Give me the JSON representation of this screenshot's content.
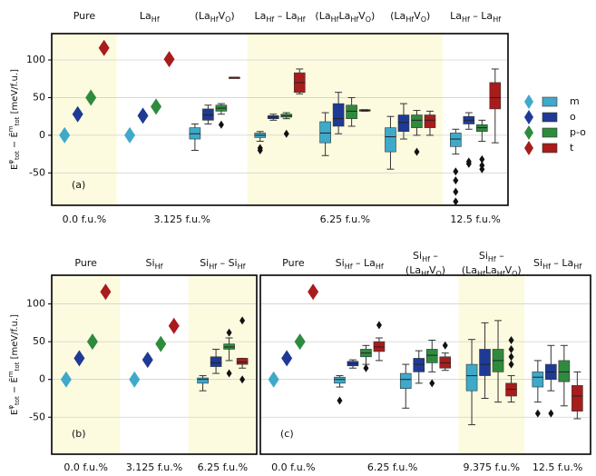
{
  "chart_data": [
    {
      "type": "box",
      "panel_label": "(a)",
      "ylabel": [
        {
          "text": "E",
          "pos": "normal"
        },
        {
          "text": "φ",
          "pos": "sup"
        },
        {
          "text": "tot",
          "pos": "sub"
        },
        {
          "text": " − Ē",
          "pos": "normal"
        },
        {
          "text": "m",
          "pos": "sup"
        },
        {
          "text": "tot",
          "pos": "sub"
        },
        {
          "text": " [meV/f.u.]",
          "pos": "normal"
        }
      ],
      "ylim": [
        -93,
        135
      ],
      "yticks": [
        -50,
        0,
        50,
        100
      ],
      "grid": true,
      "ytick_labels": true,
      "colors": [
        "#3fa9c9",
        "#1f3a96",
        "#2e8b3e",
        "#a81c1c"
      ],
      "legend": [
        "m",
        "o",
        "p-o",
        "t"
      ],
      "concentrations": [
        {
          "label": "0.0 f.u.%",
          "groups": 1,
          "shaded": true
        },
        {
          "label": "3.125 f.u.%",
          "groups": 2,
          "shaded": false
        },
        {
          "label": "6.25 f.u.%",
          "groups": 3,
          "shaded": true
        },
        {
          "label": "12.5 f.u.%",
          "groups": 1,
          "shaded": false
        }
      ],
      "groups": [
        {
          "header": [
            [
              "Pure"
            ]
          ],
          "points": [
            0,
            28,
            50,
            116
          ]
        },
        {
          "header": [
            [
              "La",
              "Hf"
            ]
          ],
          "points": [
            0,
            26,
            38,
            101
          ]
        },
        {
          "header": [
            [
              "(La",
              "Hf",
              "V",
              "O",
              ")"
            ]
          ],
          "boxes": [
            {
              "min": -20,
              "q1": -5,
              "median": 2,
              "q3": 10,
              "max": 15,
              "outliers": []
            },
            {
              "min": 15,
              "q1": 20,
              "median": 27,
              "q3": 35,
              "max": 40,
              "outliers": []
            },
            {
              "min": 28,
              "q1": 32,
              "median": 36,
              "q3": 40,
              "max": 42,
              "outliers": [
                14
              ]
            },
            {
              "min": 77,
              "q1": 77,
              "median": 77,
              "q3": 77,
              "max": 77,
              "outliers": []
            }
          ]
        },
        {
          "header": [
            [
              "La",
              "Hf",
              " – La",
              "Hf"
            ]
          ],
          "boxes": [
            {
              "min": -8,
              "q1": -3,
              "median": 0,
              "q3": 3,
              "max": 5,
              "outliers": [
                -17,
                -20
              ]
            },
            {
              "min": 20,
              "q1": 22,
              "median": 24,
              "q3": 26,
              "max": 28,
              "outliers": []
            },
            {
              "min": 22,
              "q1": 24,
              "median": 26,
              "q3": 28,
              "max": 30,
              "outliers": [
                2
              ]
            },
            {
              "min": 55,
              "q1": 57,
              "median": 70,
              "q3": 83,
              "max": 88,
              "outliers": []
            }
          ]
        },
        {
          "header": [
            [
              "(La",
              "Hf",
              "La",
              "Hf",
              "V",
              "O",
              ")"
            ]
          ],
          "boxes": [
            {
              "min": -27,
              "q1": -10,
              "median": 3,
              "q3": 18,
              "max": 30,
              "outliers": []
            },
            {
              "min": 2,
              "q1": 12,
              "median": 22,
              "q3": 42,
              "max": 57,
              "outliers": []
            },
            {
              "min": 12,
              "q1": 22,
              "median": 32,
              "q3": 40,
              "max": 50,
              "outliers": []
            },
            {
              "min": 32,
              "q1": 32,
              "median": 33,
              "q3": 34,
              "max": 34,
              "outliers": []
            }
          ]
        },
        {
          "header": [
            [
              "(La",
              "Hf",
              "V",
              "O",
              ")"
            ]
          ],
          "boxes": [
            {
              "min": -45,
              "q1": -22,
              "median": -2,
              "q3": 10,
              "max": 25,
              "outliers": []
            },
            {
              "min": -5,
              "q1": 5,
              "median": 17,
              "q3": 27,
              "max": 42,
              "outliers": []
            },
            {
              "min": 0,
              "q1": 10,
              "median": 20,
              "q3": 27,
              "max": 33,
              "outliers": [
                -22
              ]
            },
            {
              "min": 0,
              "q1": 10,
              "median": 20,
              "q3": 27,
              "max": 32,
              "outliers": []
            }
          ]
        },
        {
          "header": [
            [
              "La",
              "Hf",
              " – La",
              "Hf"
            ]
          ],
          "boxes": [
            {
              "min": -25,
              "q1": -15,
              "median": -5,
              "q3": 3,
              "max": 8,
              "outliers": [
                -48,
                -60,
                -75,
                -88
              ]
            },
            {
              "min": 8,
              "q1": 15,
              "median": 20,
              "q3": 25,
              "max": 30,
              "outliers": [
                -35,
                -38
              ]
            },
            {
              "min": -8,
              "q1": 5,
              "median": 10,
              "q3": 14,
              "max": 20,
              "outliers": [
                -32,
                -40,
                -45
              ]
            },
            {
              "min": -10,
              "q1": 35,
              "median": 50,
              "q3": 70,
              "max": 88,
              "outliers": []
            }
          ]
        }
      ]
    },
    {
      "type": "box",
      "panel_label": "(b)",
      "ylabel": [
        {
          "text": "E",
          "pos": "normal"
        },
        {
          "text": "φ",
          "pos": "sup"
        },
        {
          "text": "tot",
          "pos": "sub"
        },
        {
          "text": " − Ē",
          "pos": "normal"
        },
        {
          "text": "m",
          "pos": "sup"
        },
        {
          "text": "tot",
          "pos": "sub"
        },
        {
          "text": " [meV/f.u.]",
          "pos": "normal"
        }
      ],
      "ylim": [
        -99,
        138
      ],
      "yticks": [
        -50,
        0,
        50,
        100
      ],
      "grid": true,
      "ytick_labels": true,
      "colors": [
        "#3fa9c9",
        "#1f3a96",
        "#2e8b3e",
        "#a81c1c"
      ],
      "concentrations": [
        {
          "label": "0.0 f.u.%",
          "groups": 1,
          "shaded": true
        },
        {
          "label": "3.125 f.u.%",
          "groups": 1,
          "shaded": false
        },
        {
          "label": "6.25 f.u.%",
          "groups": 1,
          "shaded": true
        }
      ],
      "groups": [
        {
          "header": [
            [
              "Pure"
            ]
          ],
          "points": [
            0,
            28,
            50,
            116
          ]
        },
        {
          "header": [
            [
              "Si",
              "Hf"
            ]
          ],
          "points": [
            0,
            26,
            47,
            71
          ]
        },
        {
          "header": [
            [
              "Si",
              "Hf",
              " – Si",
              "Hf"
            ]
          ],
          "boxes": [
            {
              "min": -15,
              "q1": -5,
              "median": 0,
              "q3": 2,
              "max": 5,
              "outliers": []
            },
            {
              "min": 8,
              "q1": 17,
              "median": 22,
              "q3": 30,
              "max": 40,
              "outliers": []
            },
            {
              "min": 25,
              "q1": 40,
              "median": 43,
              "q3": 47,
              "max": 55,
              "outliers": [
                62,
                8
              ]
            },
            {
              "min": 15,
              "q1": 20,
              "median": 23,
              "q3": 28,
              "max": 28,
              "outliers": [
                78,
                0
              ]
            }
          ]
        }
      ]
    },
    {
      "type": "box",
      "panel_label": "(c)",
      "ylim": [
        -99,
        138
      ],
      "yticks": [
        -50,
        0,
        50,
        100
      ],
      "grid": true,
      "ytick_labels": false,
      "colors": [
        "#3fa9c9",
        "#1f3a96",
        "#2e8b3e",
        "#a81c1c"
      ],
      "concentrations": [
        {
          "label": "0.0 f.u.%",
          "groups": 1,
          "shaded": false
        },
        {
          "label": "6.25 f.u.%",
          "groups": 2,
          "shaded": false
        },
        {
          "label": "9.375 f.u.%",
          "groups": 1,
          "shaded": true
        },
        {
          "label": "12.5 f.u.%",
          "groups": 1,
          "shaded": false
        }
      ],
      "groups": [
        {
          "header": [
            [
              "Pure"
            ]
          ],
          "points": [
            0,
            28,
            50,
            116
          ]
        },
        {
          "header": [
            [
              "Si",
              "Hf",
              " – La",
              "Hf"
            ]
          ],
          "boxes": [
            {
              "min": -10,
              "q1": -5,
              "median": 0,
              "q3": 3,
              "max": 5,
              "outliers": [
                -28
              ]
            },
            {
              "min": 15,
              "q1": 18,
              "median": 21,
              "q3": 24,
              "max": 26,
              "outliers": []
            },
            {
              "min": 20,
              "q1": 30,
              "median": 35,
              "q3": 40,
              "max": 45,
              "outliers": [
                15
              ]
            },
            {
              "min": 25,
              "q1": 37,
              "median": 43,
              "q3": 50,
              "max": 55,
              "outliers": [
                72
              ]
            }
          ]
        },
        {
          "header": [
            [
              "Si",
              "Hf",
              " –"
            ],
            [
              "(La",
              "Hf",
              "V",
              "O",
              ")"
            ]
          ],
          "boxes": [
            {
              "min": -38,
              "q1": -12,
              "median": 0,
              "q3": 8,
              "max": 20,
              "outliers": []
            },
            {
              "min": -5,
              "q1": 10,
              "median": 20,
              "q3": 28,
              "max": 38,
              "outliers": []
            },
            {
              "min": 10,
              "q1": 22,
              "median": 32,
              "q3": 40,
              "max": 52,
              "outliers": [
                -5
              ]
            },
            {
              "min": 12,
              "q1": 15,
              "median": 22,
              "q3": 30,
              "max": 35,
              "outliers": [
                45
              ]
            }
          ]
        },
        {
          "header": [
            [
              "Si",
              "Hf",
              " –"
            ],
            [
              "(La",
              "Hf",
              "La",
              "Hf",
              "V",
              "O",
              ")"
            ]
          ],
          "boxes": [
            {
              "min": -60,
              "q1": -15,
              "median": 5,
              "q3": 20,
              "max": 53,
              "outliers": []
            },
            {
              "min": -25,
              "q1": 5,
              "median": 20,
              "q3": 40,
              "max": 75,
              "outliers": []
            },
            {
              "min": -30,
              "q1": 10,
              "median": 25,
              "q3": 40,
              "max": 78,
              "outliers": []
            },
            {
              "min": -30,
              "q1": -22,
              "median": -13,
              "q3": -5,
              "max": 5,
              "outliers": [
                52,
                40,
                30,
                20
              ]
            }
          ]
        },
        {
          "header": [
            [
              "Si",
              "Hf",
              " – La",
              "Hf"
            ]
          ],
          "boxes": [
            {
              "min": -30,
              "q1": -10,
              "median": 3,
              "q3": 10,
              "max": 25,
              "outliers": [
                -45
              ]
            },
            {
              "min": -15,
              "q1": 0,
              "median": 10,
              "q3": 20,
              "max": 45,
              "outliers": [
                -45
              ]
            },
            {
              "min": -35,
              "q1": -3,
              "median": 10,
              "q3": 25,
              "max": 45,
              "outliers": []
            },
            {
              "min": -52,
              "q1": -42,
              "median": -22,
              "q3": -8,
              "max": 10,
              "outliers": []
            }
          ]
        }
      ]
    }
  ]
}
